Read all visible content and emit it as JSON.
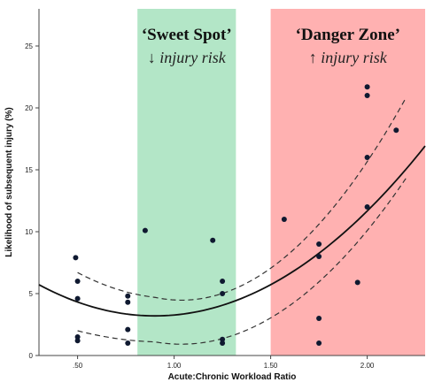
{
  "chart_data": {
    "type": "scatter",
    "xlabel": "Acute:Chronic Workload Ratio",
    "ylabel": "Likelihood of subsequent injury (%)",
    "xlim": [
      0.3,
      2.3
    ],
    "ylim": [
      0,
      28
    ],
    "x_ticks": [
      {
        "value": 0.5,
        "label": ".50"
      },
      {
        "value": 1.0,
        "label": "1.00"
      },
      {
        "value": 1.5,
        "label": "1.50"
      },
      {
        "value": 2.0,
        "label": "2.00"
      }
    ],
    "y_ticks": [
      {
        "value": 0,
        "label": "0"
      },
      {
        "value": 5,
        "label": "5"
      },
      {
        "value": 10,
        "label": "10"
      },
      {
        "value": 15,
        "label": "15"
      },
      {
        "value": 20,
        "label": "20"
      },
      {
        "value": 25,
        "label": "25"
      }
    ],
    "grid": false,
    "zones": [
      {
        "x_start": 0.81,
        "x_end": 1.32,
        "color": "#b3e6c7",
        "title": "‘Sweet Spot’",
        "subtitle": "↓ injury risk"
      },
      {
        "x_start": 1.5,
        "x_end": 2.3,
        "color": "#ffb1b1",
        "title": "‘Danger Zone’",
        "subtitle": "↑ injury risk"
      }
    ],
    "points": [
      {
        "x": 0.49,
        "y": 7.9
      },
      {
        "x": 0.5,
        "y": 6.0
      },
      {
        "x": 0.5,
        "y": 4.6
      },
      {
        "x": 0.5,
        "y": 1.5
      },
      {
        "x": 0.5,
        "y": 1.2
      },
      {
        "x": 0.76,
        "y": 4.8
      },
      {
        "x": 0.76,
        "y": 4.3
      },
      {
        "x": 0.76,
        "y": 2.1
      },
      {
        "x": 0.76,
        "y": 1.0
      },
      {
        "x": 0.85,
        "y": 10.1
      },
      {
        "x": 1.2,
        "y": 9.3
      },
      {
        "x": 1.25,
        "y": 6.0
      },
      {
        "x": 1.25,
        "y": 5.0
      },
      {
        "x": 1.25,
        "y": 1.3
      },
      {
        "x": 1.25,
        "y": 1.0
      },
      {
        "x": 1.57,
        "y": 11.0
      },
      {
        "x": 1.75,
        "y": 9.0
      },
      {
        "x": 1.75,
        "y": 8.0
      },
      {
        "x": 1.75,
        "y": 3.0
      },
      {
        "x": 1.75,
        "y": 1.0
      },
      {
        "x": 1.95,
        "y": 5.9
      },
      {
        "x": 2.0,
        "y": 21.7
      },
      {
        "x": 2.0,
        "y": 21.0
      },
      {
        "x": 2.0,
        "y": 16.0
      },
      {
        "x": 2.0,
        "y": 12.0
      },
      {
        "x": 2.15,
        "y": 18.2
      }
    ],
    "fit": {
      "type": "quadratic",
      "x_range": [
        0.3,
        2.3
      ],
      "vertex": {
        "x": 0.9,
        "y": 3.2
      },
      "coef": 7.0
    },
    "confidence_band": {
      "x_range": [
        0.5,
        2.2
      ],
      "upper": [
        {
          "x": 0.5,
          "y": 6.7
        },
        {
          "x": 0.9,
          "y": 4.7
        },
        {
          "x": 1.3,
          "y": 5.3
        },
        {
          "x": 2.2,
          "y": 20.8
        }
      ],
      "lower": [
        {
          "x": 0.5,
          "y": 2.0
        },
        {
          "x": 0.9,
          "y": 1.1
        },
        {
          "x": 1.3,
          "y": 1.6
        },
        {
          "x": 2.2,
          "y": 14.3
        }
      ]
    },
    "colors": {
      "points": "#0f1930",
      "fit": "#111111",
      "band": "#333333",
      "axis": "#444444"
    }
  }
}
